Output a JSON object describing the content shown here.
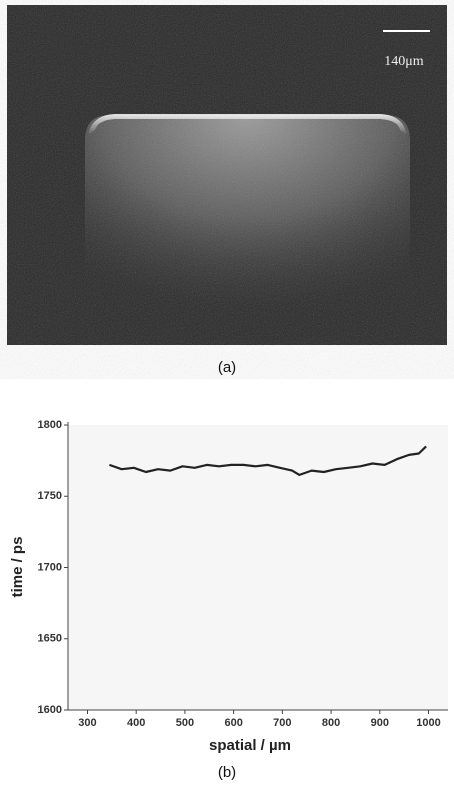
{
  "image": {
    "scale_label": "140μm",
    "caption": "(a)"
  },
  "chart_data": {
    "type": "line",
    "caption": "(b)",
    "x_label": "spatial / µm",
    "y_label": "time / ps",
    "x": [
      345,
      370,
      395,
      420,
      445,
      470,
      495,
      520,
      545,
      570,
      595,
      620,
      645,
      670,
      695,
      720,
      735,
      760,
      785,
      810,
      835,
      860,
      885,
      910,
      935,
      960,
      980,
      995
    ],
    "values": [
      1772,
      1769,
      1770,
      1767,
      1769,
      1768,
      1771,
      1770,
      1772,
      1771,
      1772,
      1772,
      1771,
      1772,
      1770,
      1768,
      1765,
      1768,
      1767,
      1769,
      1770,
      1771,
      1773,
      1772,
      1776,
      1779,
      1780,
      1785
    ],
    "color": "#222222",
    "xlim": [
      260,
      1040
    ],
    "ylim": [
      1600,
      1800
    ],
    "xticks": [
      300,
      400,
      500,
      600,
      700,
      800,
      900,
      1000
    ],
    "yticks": [
      1600,
      1650,
      1700,
      1750,
      1800
    ]
  }
}
